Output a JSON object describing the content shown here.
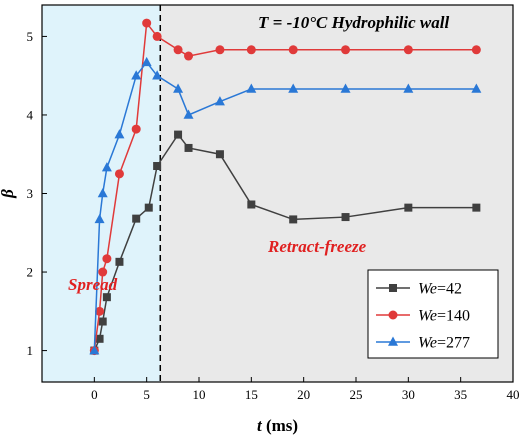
{
  "chart_data": {
    "type": "line",
    "title": "",
    "xlabel": "",
    "ylabel": "",
    "x_title_var": "t",
    "x_title_unit": " (ms)",
    "y_title_var": "β",
    "xlim": [
      -5,
      40
    ],
    "ylim": [
      0.6,
      5.4
    ],
    "xticks": [
      0,
      5,
      10,
      15,
      20,
      25,
      30,
      35,
      40
    ],
    "yticks": [
      1,
      2,
      3,
      4,
      5
    ],
    "divider_x": 6.3,
    "regions": [
      {
        "label": "Spread",
        "x_range": [
          -5,
          6.3
        ],
        "color": "#dff3fb"
      },
      {
        "label": "Retract-freeze",
        "x_range": [
          6.3,
          40
        ],
        "color": "#e9e9e9"
      }
    ],
    "annotations": {
      "top_right": "T = -10°C  Hydrophilic wall",
      "spread": "Spread",
      "retract": "Retract-freeze"
    },
    "legend_position": "bottom-right",
    "series": [
      {
        "name": "We=42",
        "name_var": "We",
        "name_val": "=42",
        "color": "#404040",
        "marker": "square",
        "x": [
          0,
          0.5,
          0.8,
          1.2,
          2.4,
          4.0,
          5.2,
          6.0,
          8.0,
          9.0,
          12.0,
          15.0,
          19.0,
          24.0,
          30.0,
          36.5
        ],
        "y": [
          1.0,
          1.15,
          1.37,
          1.68,
          2.13,
          2.68,
          2.82,
          3.35,
          3.75,
          3.58,
          3.5,
          2.86,
          2.67,
          2.7,
          2.82,
          2.82
        ]
      },
      {
        "name": "We=140",
        "name_var": "We",
        "name_val": "=140",
        "color": "#e03a3a",
        "marker": "circle",
        "x": [
          0,
          0.5,
          0.8,
          1.2,
          2.4,
          4.0,
          5.0,
          6.0,
          8.0,
          9.0,
          12.0,
          15.0,
          19.0,
          24.0,
          30.0,
          36.5
        ],
        "y": [
          1.0,
          1.5,
          2.0,
          2.17,
          3.25,
          3.82,
          5.17,
          5.0,
          4.83,
          4.75,
          4.83,
          4.83,
          4.83,
          4.83,
          4.83,
          4.83
        ]
      },
      {
        "name": "We=277",
        "name_var": "We",
        "name_val": "=277",
        "color": "#2a78d6",
        "marker": "triangle",
        "x": [
          0,
          0.5,
          0.8,
          1.2,
          2.4,
          4.0,
          5.0,
          6.0,
          8.0,
          9.0,
          12.0,
          15.0,
          19.0,
          24.0,
          30.0,
          36.5
        ],
        "y": [
          1.0,
          2.67,
          3.0,
          3.33,
          3.75,
          4.5,
          4.67,
          4.5,
          4.33,
          4.0,
          4.17,
          4.33,
          4.33,
          4.33,
          4.33,
          4.33
        ]
      }
    ]
  }
}
